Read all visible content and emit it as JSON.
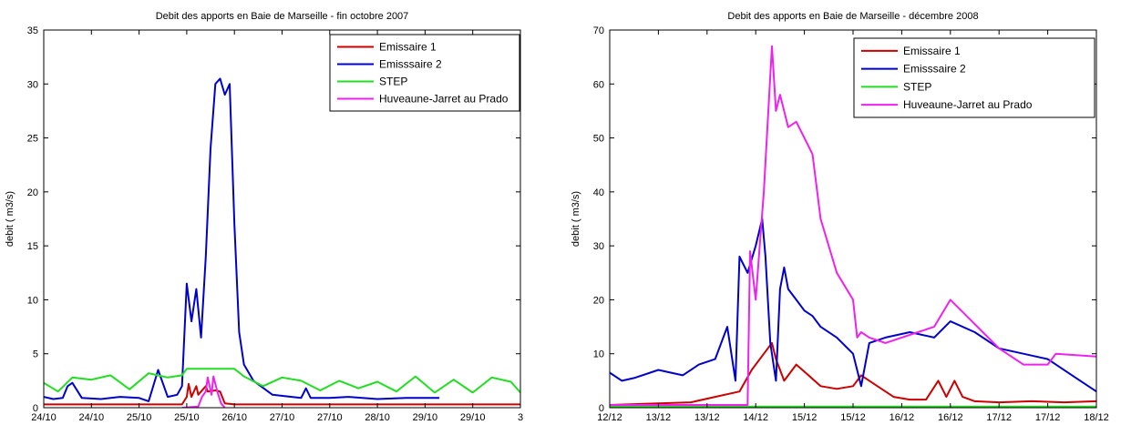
{
  "chart_data": [
    {
      "type": "line",
      "title": "Debit des apports en Baie de Marseille - fin octobre 2007",
      "ylabel": "debit ( m3/s)",
      "xlabel": "",
      "ylim": [
        0,
        35
      ],
      "yticks": [
        0,
        5,
        10,
        15,
        20,
        25,
        30,
        35
      ],
      "x_ticklabels": [
        "24/10",
        "24/10",
        "25/10",
        "25/10",
        "26/10",
        "27/10",
        "27/10",
        "28/10",
        "29/10",
        "29/10",
        "3"
      ],
      "x_ticks": [
        0,
        0.5,
        1,
        1.5,
        2,
        2.5,
        3,
        3.5,
        4,
        4.5,
        5
      ],
      "xlim": [
        0,
        5
      ],
      "grid": false,
      "legend_position": "top-right",
      "series": [
        {
          "name": "Emissaire 1",
          "color": "#cc0000",
          "x": [
            0,
            1.45,
            1.5,
            1.52,
            1.55,
            1.6,
            1.62,
            1.7,
            1.72,
            1.8,
            1.85,
            1.9,
            2.0,
            3.0,
            4.0,
            5.0
          ],
          "y": [
            0.3,
            0.3,
            1.0,
            2.2,
            1.0,
            2.0,
            1.2,
            2.0,
            1.5,
            1.6,
            1.5,
            0.4,
            0.3,
            0.3,
            0.3,
            0.3
          ]
        },
        {
          "name": "Emisssaire 2",
          "color": "#0000cc",
          "x": [
            0,
            0.1,
            0.2,
            0.25,
            0.3,
            0.4,
            0.6,
            0.8,
            1.0,
            1.1,
            1.2,
            1.3,
            1.4,
            1.45,
            1.5,
            1.55,
            1.6,
            1.65,
            1.7,
            1.75,
            1.8,
            1.85,
            1.9,
            1.95,
            2.0,
            2.05,
            2.1,
            2.2,
            2.4,
            2.6,
            2.7,
            2.75,
            2.8,
            3.0,
            3.2,
            3.5,
            3.8,
            4.1,
            4.15
          ],
          "y": [
            1.0,
            0.8,
            0.9,
            2.0,
            2.3,
            0.9,
            0.8,
            1.0,
            0.9,
            0.6,
            3.5,
            1.0,
            1.2,
            2.0,
            11.5,
            8.0,
            11.0,
            6.5,
            14.0,
            24.0,
            30.0,
            30.5,
            29.0,
            30.0,
            17.0,
            7.0,
            4.0,
            2.5,
            1.2,
            1.0,
            0.9,
            1.8,
            0.9,
            0.9,
            1.0,
            0.8,
            0.9,
            0.9,
            0.9
          ]
        },
        {
          "name": "STEP",
          "color": "#22dd22",
          "x": [
            0,
            0.15,
            0.3,
            0.5,
            0.7,
            0.9,
            1.1,
            1.3,
            1.45,
            1.5,
            2.0,
            2.1,
            2.3,
            2.5,
            2.7,
            2.9,
            3.1,
            3.3,
            3.5,
            3.7,
            3.9,
            4.1,
            4.3,
            4.5,
            4.7,
            4.9,
            5.0
          ],
          "y": [
            2.3,
            1.5,
            2.8,
            2.6,
            3.0,
            1.7,
            3.2,
            2.8,
            3.0,
            3.6,
            3.6,
            2.9,
            2.0,
            2.8,
            2.5,
            1.6,
            2.5,
            1.8,
            2.4,
            1.5,
            2.9,
            1.4,
            2.6,
            1.4,
            2.8,
            2.4,
            1.4
          ]
        },
        {
          "name": "Huveaune-Jarret au Prado",
          "color": "#ee22ee",
          "x": [
            1.45,
            1.62,
            1.66,
            1.7,
            1.72,
            1.76,
            1.78,
            1.82,
            1.86,
            1.9
          ],
          "y": [
            0,
            0.1,
            1.0,
            1.5,
            2.8,
            1.2,
            2.9,
            1.5,
            0.4,
            0.0
          ]
        }
      ]
    },
    {
      "type": "line",
      "title": "Debit des apports en Baie de Marseille - décembre 2008",
      "ylabel": "debit ( m3/s)",
      "xlabel": "",
      "ylim": [
        0,
        70
      ],
      "yticks": [
        0,
        10,
        20,
        30,
        40,
        50,
        60,
        70
      ],
      "x_ticklabels": [
        "12/12",
        "13/12",
        "13/12",
        "14/12",
        "15/12",
        "15/12",
        "16/12",
        "16/12",
        "17/12",
        "17/12",
        "18/12"
      ],
      "x_ticks": [
        0,
        0.6,
        1.2,
        1.8,
        2.4,
        3.0,
        3.6,
        4.2,
        4.8,
        5.4,
        6.0
      ],
      "xlim": [
        0,
        6
      ],
      "grid": false,
      "legend_position": "top-right",
      "series": [
        {
          "name": "Emissaire 1",
          "color": "#cc0000",
          "x": [
            0,
            0.6,
            1.0,
            1.3,
            1.6,
            1.75,
            1.9,
            2.0,
            2.05,
            2.15,
            2.3,
            2.45,
            2.6,
            2.8,
            3.0,
            3.1,
            3.3,
            3.5,
            3.7,
            3.9,
            4.05,
            4.15,
            4.25,
            4.35,
            4.5,
            4.8,
            5.2,
            5.6,
            6.0
          ],
          "y": [
            0.5,
            0.8,
            1.0,
            2.0,
            3.0,
            7.0,
            10.0,
            12.0,
            9.0,
            5.0,
            8.0,
            6.0,
            4.0,
            3.5,
            4.0,
            6.0,
            4.0,
            2.0,
            1.5,
            1.5,
            5.0,
            2.0,
            5.0,
            2.0,
            1.2,
            1.0,
            1.2,
            1.0,
            1.2
          ]
        },
        {
          "name": "Emisssaire 2",
          "color": "#0000cc",
          "x": [
            0,
            0.15,
            0.3,
            0.6,
            0.9,
            1.1,
            1.3,
            1.45,
            1.55,
            1.6,
            1.7,
            1.8,
            1.88,
            1.92,
            1.98,
            2.05,
            2.1,
            2.15,
            2.2,
            2.3,
            2.4,
            2.5,
            2.6,
            2.8,
            3.0,
            3.1,
            3.2,
            3.4,
            3.7,
            4.0,
            4.2,
            4.5,
            4.8,
            5.1,
            5.4,
            5.7,
            6.0
          ],
          "y": [
            6.5,
            5.0,
            5.5,
            7.0,
            6.0,
            8.0,
            9.0,
            15.0,
            5.0,
            28.0,
            25.0,
            30.0,
            35.0,
            28.0,
            12.0,
            5.0,
            22.0,
            26.0,
            22.0,
            20.0,
            18.0,
            17.0,
            15.0,
            13.0,
            10.0,
            4.0,
            12.0,
            13.0,
            14.0,
            13.0,
            16.0,
            14.0,
            11.0,
            10.0,
            9.0,
            6.0,
            3.0
          ]
        },
        {
          "name": "STEP",
          "color": "#22dd22",
          "x": [
            0,
            6.0
          ],
          "y": [
            0.2,
            0.2
          ]
        },
        {
          "name": "Huveaune-Jarret au Prado",
          "color": "#ee22ee",
          "x": [
            0,
            1.5,
            1.7,
            1.73,
            1.8,
            1.85,
            1.9,
            2.0,
            2.05,
            2.1,
            2.2,
            2.3,
            2.4,
            2.5,
            2.6,
            2.8,
            3.0,
            3.05,
            3.1,
            3.2,
            3.4,
            3.6,
            3.8,
            4.0,
            4.2,
            4.4,
            4.6,
            4.8,
            5.1,
            5.4,
            5.5,
            6.0
          ],
          "y": [
            0.5,
            0.5,
            0.5,
            29.0,
            20.0,
            30.0,
            40.0,
            67.0,
            55.0,
            58.0,
            52.0,
            53.0,
            50.0,
            47.0,
            35.0,
            25.0,
            20.0,
            13.0,
            14.0,
            13.0,
            12.0,
            13.0,
            14.0,
            15.0,
            20.0,
            17.0,
            14.0,
            11.0,
            8.0,
            8.0,
            10.0,
            9.5
          ]
        }
      ]
    }
  ]
}
